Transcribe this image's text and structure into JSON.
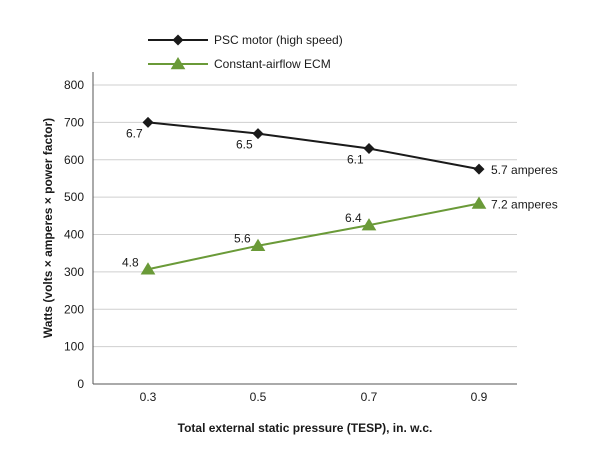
{
  "chart_data": {
    "type": "line",
    "x": [
      0.3,
      0.5,
      0.7,
      0.9
    ],
    "xlabel": "Total external static pressure (TESP), in. w.c.",
    "ylabel": "Watts (volts × amperes × power factor)",
    "ylim": [
      0,
      800
    ],
    "yticks": [
      0,
      100,
      200,
      300,
      400,
      500,
      600,
      700,
      800
    ],
    "xticks": [
      "0.3",
      "0.5",
      "0.7",
      "0.9"
    ],
    "grid": "horizontal",
    "legend_position": "top",
    "series": [
      {
        "name": "PSC motor (high speed)",
        "color": "#1a1a1a",
        "marker": "diamond",
        "values": [
          700,
          670,
          630,
          575
        ],
        "labels": [
          "6.7",
          "6.5",
          "6.1",
          "5.7 amperes"
        ]
      },
      {
        "name": "Constant-airflow ECM",
        "color": "#6a9a38",
        "marker": "triangle",
        "values": [
          307,
          370,
          425,
          483
        ],
        "labels": [
          "4.8",
          "5.6",
          "6.4",
          "7.2 amperes"
        ]
      }
    ]
  }
}
